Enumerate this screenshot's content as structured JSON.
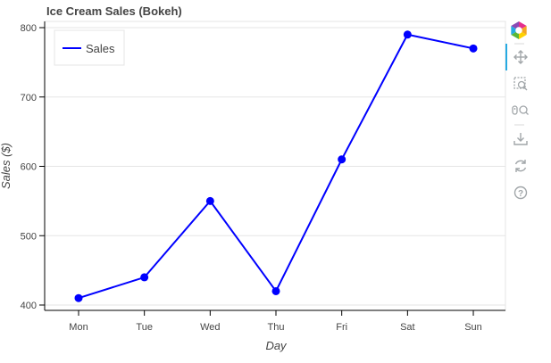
{
  "chart_data": {
    "type": "line",
    "title": "Ice Cream Sales (Bokeh)",
    "xlabel": "Day",
    "ylabel": "Sales ($)",
    "categories": [
      "Mon",
      "Tue",
      "Wed",
      "Thu",
      "Fri",
      "Sat",
      "Sun"
    ],
    "series": [
      {
        "name": "Sales",
        "values": [
          410,
          440,
          550,
          420,
          610,
          790,
          770
        ],
        "color": "#0000ff"
      }
    ],
    "ylim": [
      400,
      800
    ],
    "yticks": [
      400,
      500,
      600,
      700,
      800
    ],
    "grid": true,
    "legend_position": "top-left"
  },
  "toolbar": {
    "tools": [
      {
        "name": "bokeh-logo-icon",
        "active": false
      },
      {
        "name": "pan-icon",
        "active": true
      },
      {
        "name": "box-zoom-icon",
        "active": false
      },
      {
        "name": "wheel-zoom-icon",
        "active": false
      },
      {
        "name": "save-icon",
        "active": false
      },
      {
        "name": "reset-icon",
        "active": false
      },
      {
        "name": "help-icon",
        "active": false
      }
    ],
    "active_color": "#26aae1",
    "icon_color": "#a1a6a9"
  }
}
